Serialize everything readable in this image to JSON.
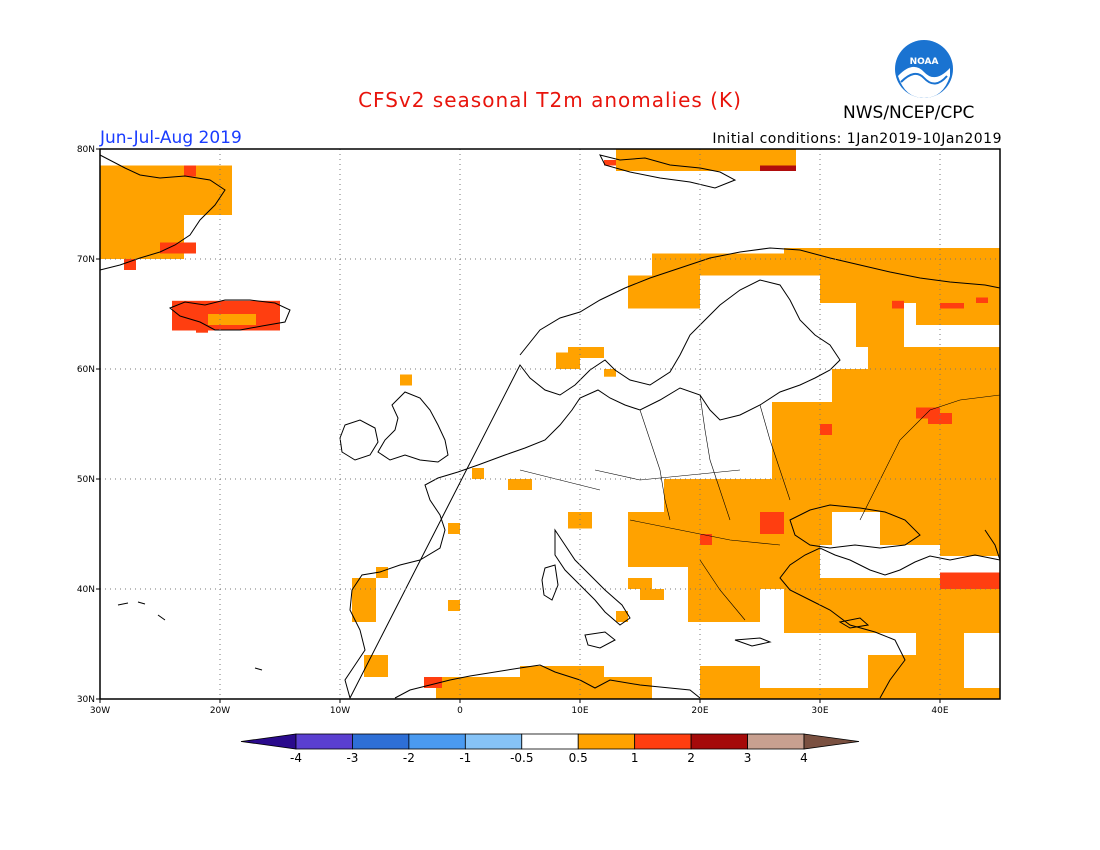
{
  "header": {
    "title": "CFSv2 seasonal T2m anomalies (K)",
    "period": "Jun-Jul-Aug 2019",
    "initial_conditions": "Initial conditions: 1Jan2019-10Jan2019",
    "agency": "NWS/NCEP/CPC",
    "logo_text": "NOAA"
  },
  "map": {
    "lat_ticks": [
      "80N",
      "70N",
      "60N",
      "50N",
      "40N",
      "30N"
    ],
    "lon_ticks": [
      "30W",
      "20W",
      "10W",
      "0",
      "10E",
      "20E",
      "30E",
      "40E"
    ],
    "extent": {
      "lon_min": -30,
      "lon_max": 45,
      "lat_min": 30,
      "lat_max": 80
    },
    "gridlines": true
  },
  "colorbar": {
    "labels": [
      "-4",
      "-3",
      "-2",
      "-1",
      "-0.5",
      "0.5",
      "1",
      "2",
      "3",
      "4"
    ],
    "colors": [
      "#2a0a8c",
      "#5a3fd0",
      "#2e6fd6",
      "#4a9af0",
      "#86c3f7",
      "#ffffff",
      "#ffa200",
      "#ff3e10",
      "#a50a0a",
      "#c8a090",
      "#7a5040"
    ]
  },
  "anomaly_colors": {
    "orange": "#ffa200",
    "red": "#ff3e10",
    "darkred": "#b00c0c"
  }
}
